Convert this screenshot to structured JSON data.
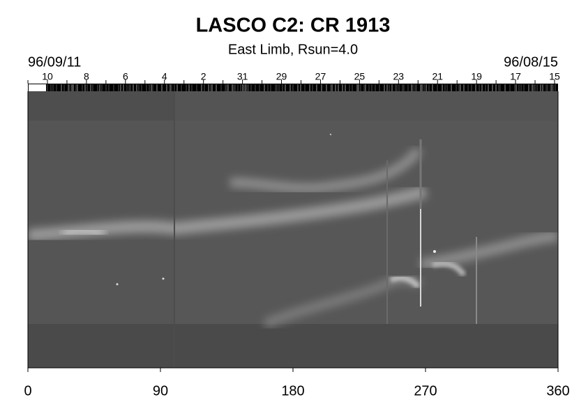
{
  "chart_data": {
    "type": "synoptic-map",
    "title": "LASCO C2: CR 1913",
    "subtitle": "East Limb, Rsun=4.0",
    "start_date": "96/09/11",
    "end_date": "96/08/15",
    "top_day_labels": [
      "10",
      "8",
      "6",
      "4",
      "2",
      "31",
      "29",
      "27",
      "25",
      "23",
      "21",
      "19",
      "17",
      "15"
    ],
    "xlim": [
      0,
      360
    ],
    "xticks": [
      0,
      90,
      180,
      270,
      360
    ]
  }
}
